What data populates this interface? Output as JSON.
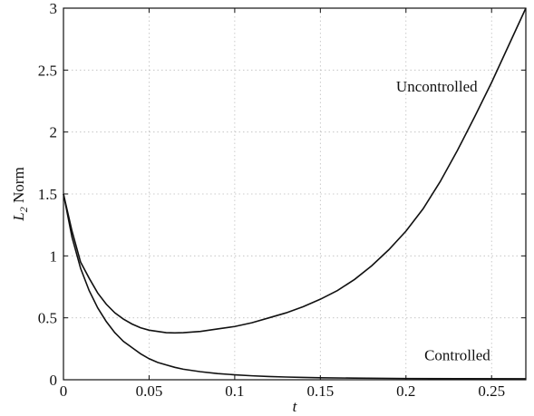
{
  "chart_data": {
    "type": "line",
    "title": "",
    "xlabel": "t",
    "ylabel": {
      "main": "L",
      "sub": "2",
      "rest": " Norm"
    },
    "xlim": [
      0,
      0.27
    ],
    "ylim": [
      0,
      3
    ],
    "grid": true,
    "x_ticks": [
      0,
      0.05,
      0.1,
      0.15,
      0.2,
      0.25
    ],
    "x_tick_labels": [
      "0",
      "0.05",
      "0.1",
      "0.15",
      "0.2",
      "0.25"
    ],
    "y_ticks": [
      0,
      0.5,
      1,
      1.5,
      2,
      2.5,
      3
    ],
    "y_tick_labels": [
      "0",
      "0.5",
      "1",
      "1.5",
      "2",
      "2.5",
      "3"
    ],
    "series": [
      {
        "name": "Uncontrolled",
        "x": [
          0,
          0.005,
          0.01,
          0.015,
          0.02,
          0.025,
          0.03,
          0.035,
          0.04,
          0.045,
          0.05,
          0.055,
          0.06,
          0.065,
          0.07,
          0.08,
          0.09,
          0.1,
          0.11,
          0.12,
          0.13,
          0.14,
          0.15,
          0.16,
          0.17,
          0.18,
          0.19,
          0.2,
          0.21,
          0.22,
          0.23,
          0.24,
          0.25,
          0.26,
          0.27
        ],
        "y": [
          1.5,
          1.2,
          0.95,
          0.82,
          0.7,
          0.61,
          0.54,
          0.49,
          0.45,
          0.42,
          0.4,
          0.39,
          0.38,
          0.378,
          0.38,
          0.39,
          0.41,
          0.43,
          0.46,
          0.5,
          0.54,
          0.59,
          0.65,
          0.72,
          0.81,
          0.92,
          1.05,
          1.2,
          1.38,
          1.6,
          1.85,
          2.12,
          2.4,
          2.7,
          3.0
        ]
      },
      {
        "name": "Controlled",
        "x": [
          0,
          0.005,
          0.01,
          0.015,
          0.02,
          0.025,
          0.03,
          0.035,
          0.04,
          0.045,
          0.05,
          0.055,
          0.06,
          0.065,
          0.07,
          0.08,
          0.09,
          0.1,
          0.11,
          0.12,
          0.13,
          0.14,
          0.15,
          0.17,
          0.2,
          0.23,
          0.27
        ],
        "y": [
          1.5,
          1.15,
          0.9,
          0.72,
          0.58,
          0.47,
          0.38,
          0.31,
          0.26,
          0.21,
          0.17,
          0.14,
          0.12,
          0.1,
          0.085,
          0.065,
          0.05,
          0.04,
          0.032,
          0.026,
          0.022,
          0.019,
          0.016,
          0.013,
          0.01,
          0.009,
          0.008
        ]
      }
    ],
    "annotations": [
      {
        "text": "Uncontrolled",
        "x": 0.218,
        "y": 2.37
      },
      {
        "text": "Controlled",
        "x": 0.23,
        "y": 0.2
      }
    ]
  }
}
